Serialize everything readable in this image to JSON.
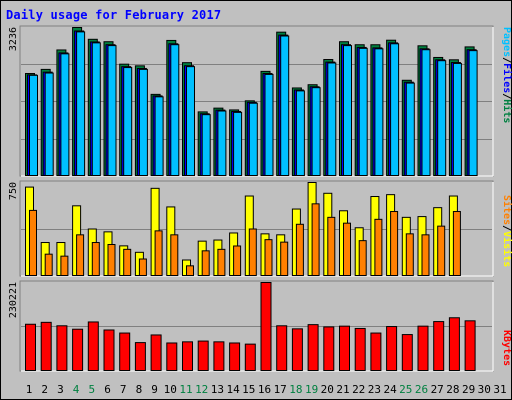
{
  "title": "Daily usage for February 2017",
  "chart_data": [
    {
      "type": "bar",
      "panel": "top",
      "ymax_label": "3236",
      "ylim": [
        0,
        3236
      ],
      "categories": [
        "1",
        "2",
        "3",
        "4",
        "5",
        "6",
        "7",
        "8",
        "9",
        "10",
        "11",
        "12",
        "13",
        "14",
        "15",
        "16",
        "17",
        "18",
        "19",
        "20",
        "21",
        "22",
        "23",
        "24",
        "25",
        "26",
        "27",
        "28",
        "29",
        "30",
        "31"
      ],
      "series": [
        {
          "name": "Hits",
          "color": "#008040",
          "values": [
            2230,
            2320,
            2745,
            3236,
            2978,
            2925,
            2434,
            2398,
            1774,
            2953,
            2467,
            1391,
            1473,
            1434,
            1633,
            2277,
            3134,
            1914,
            1985,
            2536,
            2925,
            2859,
            2859,
            2958,
            2082,
            2836,
            2581,
            2530,
            2812,
            0,
            0
          ]
        },
        {
          "name": "Files",
          "color": "#0000ff",
          "values": [
            2200,
            2260,
            2680,
            3160,
            2920,
            2860,
            2380,
            2340,
            1740,
            2880,
            2400,
            1350,
            1430,
            1400,
            1600,
            2230,
            3070,
            1870,
            1940,
            2480,
            2860,
            2800,
            2790,
            2900,
            2040,
            2770,
            2530,
            2470,
            2750,
            0,
            0
          ]
        },
        {
          "name": "Pages",
          "color": "#00c0ff",
          "values": [
            2190,
            2240,
            2660,
            3140,
            2900,
            2840,
            2360,
            2320,
            1720,
            2860,
            2380,
            1330,
            1410,
            1380,
            1580,
            2210,
            3050,
            1850,
            1920,
            2460,
            2840,
            2780,
            2770,
            2880,
            2020,
            2750,
            2510,
            2450,
            2730,
            0,
            0
          ]
        }
      ],
      "legend": [
        "Pages",
        "Files",
        "Hits"
      ]
    },
    {
      "type": "bar",
      "panel": "middle",
      "ymax_label": "750",
      "ylim": [
        0,
        750
      ],
      "categories": [
        "1",
        "2",
        "3",
        "4",
        "5",
        "6",
        "7",
        "8",
        "9",
        "10",
        "11",
        "12",
        "13",
        "14",
        "15",
        "16",
        "17",
        "18",
        "19",
        "20",
        "21",
        "22",
        "23",
        "24",
        "25",
        "26",
        "27",
        "28",
        "29",
        "30",
        "31"
      ],
      "series": [
        {
          "name": "Visits",
          "color": "#ffff00",
          "values": [
            713,
            266,
            266,
            562,
            375,
            352,
            239,
            187,
            703,
            553,
            125,
            277,
            286,
            343,
            641,
            336,
            328,
            536,
            750,
            663,
            522,
            385,
            637,
            652,
            469,
            475,
            547,
            641,
            0,
            0,
            0
          ]
        },
        {
          "name": "Sites",
          "color": "#ff8000",
          "values": [
            525,
            172,
            156,
            328,
            266,
            250,
            211,
            133,
            360,
            328,
            78,
            199,
            211,
            238,
            375,
            289,
            269,
            413,
            578,
            469,
            422,
            281,
            453,
            516,
            336,
            328,
            398,
            516,
            0,
            0,
            0
          ]
        }
      ],
      "legend": [
        "Sites",
        "Visits"
      ]
    },
    {
      "type": "bar",
      "panel": "bottom",
      "ymax_label": "230221",
      "ylim": [
        0,
        230221
      ],
      "categories": [
        "1",
        "2",
        "3",
        "4",
        "5",
        "6",
        "7",
        "8",
        "9",
        "10",
        "11",
        "12",
        "13",
        "14",
        "15",
        "16",
        "17",
        "18",
        "19",
        "20",
        "21",
        "22",
        "23",
        "24",
        "25",
        "26",
        "27",
        "28",
        "29",
        "30",
        "31"
      ],
      "series": [
        {
          "name": "KBytes",
          "color": "#ff0000",
          "values": [
            121000,
            126000,
            117000,
            108000,
            127000,
            106000,
            98000,
            73000,
            93000,
            72000,
            75000,
            77000,
            75000,
            72000,
            69000,
            230221,
            117000,
            109000,
            120000,
            114000,
            116000,
            110000,
            98000,
            115000,
            94000,
            116000,
            128000,
            138000,
            130000,
            0,
            0
          ]
        }
      ],
      "legend": [
        "KBytes"
      ]
    }
  ],
  "x_labels": [
    {
      "text": "1",
      "color": "#000000"
    },
    {
      "text": "2",
      "color": "#000000"
    },
    {
      "text": "3",
      "color": "#000000"
    },
    {
      "text": "4",
      "color": "#008040"
    },
    {
      "text": "5",
      "color": "#008040"
    },
    {
      "text": "6",
      "color": "#000000"
    },
    {
      "text": "7",
      "color": "#000000"
    },
    {
      "text": "8",
      "color": "#000000"
    },
    {
      "text": "9",
      "color": "#000000"
    },
    {
      "text": "10",
      "color": "#000000"
    },
    {
      "text": "11",
      "color": "#008040"
    },
    {
      "text": "12",
      "color": "#008040"
    },
    {
      "text": "13",
      "color": "#000000"
    },
    {
      "text": "14",
      "color": "#000000"
    },
    {
      "text": "15",
      "color": "#000000"
    },
    {
      "text": "16",
      "color": "#000000"
    },
    {
      "text": "17",
      "color": "#000000"
    },
    {
      "text": "18",
      "color": "#008040"
    },
    {
      "text": "19",
      "color": "#008040"
    },
    {
      "text": "20",
      "color": "#000000"
    },
    {
      "text": "21",
      "color": "#000000"
    },
    {
      "text": "22",
      "color": "#000000"
    },
    {
      "text": "23",
      "color": "#000000"
    },
    {
      "text": "24",
      "color": "#000000"
    },
    {
      "text": "25",
      "color": "#008040"
    },
    {
      "text": "26",
      "color": "#008040"
    },
    {
      "text": "27",
      "color": "#000000"
    },
    {
      "text": "28",
      "color": "#000000"
    },
    {
      "text": "29",
      "color": "#000000"
    },
    {
      "text": "30",
      "color": "#000000"
    },
    {
      "text": "31",
      "color": "#000000"
    }
  ],
  "right_legends": {
    "top": [
      {
        "text": "Pages",
        "color": "#00c0ff"
      },
      {
        "text": "/",
        "color": "#000000"
      },
      {
        "text": "Files",
        "color": "#0000ff"
      },
      {
        "text": "/",
        "color": "#000000"
      },
      {
        "text": "Hits",
        "color": "#008040"
      }
    ],
    "middle": [
      {
        "text": "Sites",
        "color": "#ff8000"
      },
      {
        "text": "/",
        "color": "#000000"
      },
      {
        "text": "Visits",
        "color": "#ffff00"
      }
    ],
    "bottom": [
      {
        "text": "KBytes",
        "color": "#ff0000"
      }
    ]
  },
  "colors": {
    "background": "#c0c0c0",
    "title": "#0000ff",
    "grid": "#808080",
    "frame": "#000000"
  }
}
